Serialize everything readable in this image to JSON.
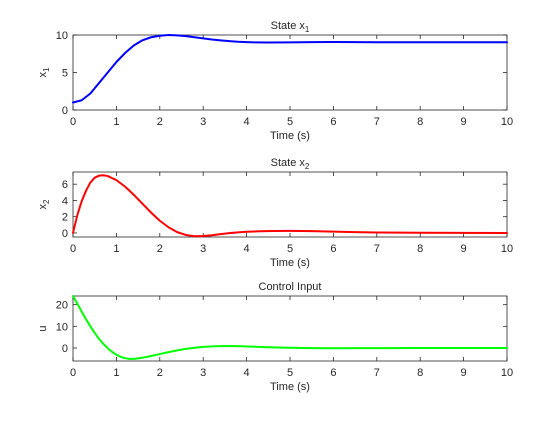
{
  "chart_data": [
    {
      "type": "line",
      "title": "State x",
      "title_subscript": "1",
      "xlabel": "Time (s)",
      "ylabel": "x",
      "ylabel_subscript": "1",
      "xlim": [
        0,
        10
      ],
      "ylim": [
        0,
        10
      ],
      "xticks": [
        0,
        1,
        2,
        3,
        4,
        5,
        6,
        7,
        8,
        9,
        10
      ],
      "yticks": [
        0,
        5,
        10
      ],
      "grid": false,
      "series": [
        {
          "color": "#0000ff",
          "points": [
            [
              0,
              1.0
            ],
            [
              0.2,
              1.3
            ],
            [
              0.4,
              2.2
            ],
            [
              0.6,
              3.6
            ],
            [
              0.8,
              5.0
            ],
            [
              1.0,
              6.4
            ],
            [
              1.2,
              7.6
            ],
            [
              1.4,
              8.6
            ],
            [
              1.6,
              9.3
            ],
            [
              1.8,
              9.7
            ],
            [
              2.0,
              9.9
            ],
            [
              2.2,
              10.0
            ],
            [
              2.4,
              9.95
            ],
            [
              2.6,
              9.85
            ],
            [
              2.8,
              9.7
            ],
            [
              3.0,
              9.55
            ],
            [
              3.2,
              9.4
            ],
            [
              3.4,
              9.28
            ],
            [
              3.6,
              9.18
            ],
            [
              3.8,
              9.1
            ],
            [
              4.0,
              9.05
            ],
            [
              4.2,
              9.02
            ],
            [
              4.5,
              9.0
            ],
            [
              5.0,
              9.02
            ],
            [
              5.5,
              9.05
            ],
            [
              6.0,
              9.06
            ],
            [
              6.5,
              9.05
            ],
            [
              7.0,
              9.04
            ],
            [
              8.0,
              9.03
            ],
            [
              9.0,
              9.03
            ],
            [
              10.0,
              9.03
            ]
          ]
        }
      ]
    },
    {
      "type": "line",
      "title": "State x",
      "title_subscript": "2",
      "xlabel": "Time (s)",
      "ylabel": "x",
      "ylabel_subscript": "2",
      "xlim": [
        0,
        10
      ],
      "ylim": [
        -0.5,
        7.5
      ],
      "xticks": [
        0,
        1,
        2,
        3,
        4,
        5,
        6,
        7,
        8,
        9,
        10
      ],
      "yticks": [
        0,
        2,
        4,
        6
      ],
      "grid": false,
      "series": [
        {
          "color": "#ff0000",
          "points": [
            [
              0,
              0.0
            ],
            [
              0.1,
              2.2
            ],
            [
              0.2,
              3.9
            ],
            [
              0.3,
              5.2
            ],
            [
              0.4,
              6.2
            ],
            [
              0.5,
              6.8
            ],
            [
              0.6,
              7.05
            ],
            [
              0.7,
              7.1
            ],
            [
              0.8,
              7.0
            ],
            [
              1.0,
              6.5
            ],
            [
              1.2,
              5.7
            ],
            [
              1.4,
              4.7
            ],
            [
              1.6,
              3.6
            ],
            [
              1.8,
              2.5
            ],
            [
              2.0,
              1.5
            ],
            [
              2.2,
              0.7
            ],
            [
              2.4,
              0.1
            ],
            [
              2.6,
              -0.25
            ],
            [
              2.8,
              -0.4
            ],
            [
              3.0,
              -0.38
            ],
            [
              3.2,
              -0.28
            ],
            [
              3.4,
              -0.15
            ],
            [
              3.6,
              -0.03
            ],
            [
              3.8,
              0.07
            ],
            [
              4.0,
              0.14
            ],
            [
              4.3,
              0.2
            ],
            [
              4.6,
              0.24
            ],
            [
              5.0,
              0.25
            ],
            [
              5.5,
              0.22
            ],
            [
              6.0,
              0.16
            ],
            [
              6.5,
              0.1
            ],
            [
              7.0,
              0.06
            ],
            [
              8.0,
              0.02
            ],
            [
              9.0,
              0.01
            ],
            [
              10.0,
              0.0
            ]
          ]
        }
      ]
    },
    {
      "type": "line",
      "title": "Control Input",
      "title_subscript": "",
      "xlabel": "Time (s)",
      "ylabel": "u",
      "ylabel_subscript": "",
      "xlim": [
        0,
        10
      ],
      "ylim": [
        -6,
        24
      ],
      "xticks": [
        0,
        1,
        2,
        3,
        4,
        5,
        6,
        7,
        8,
        9,
        10
      ],
      "yticks": [
        0,
        10,
        20
      ],
      "grid": false,
      "series": [
        {
          "color": "#00ff00",
          "points": [
            [
              0,
              24.0
            ],
            [
              0.1,
              20.5
            ],
            [
              0.2,
              16.8
            ],
            [
              0.3,
              13.3
            ],
            [
              0.4,
              10.0
            ],
            [
              0.5,
              7.0
            ],
            [
              0.6,
              4.2
            ],
            [
              0.7,
              1.9
            ],
            [
              0.8,
              -0.1
            ],
            [
              0.9,
              -1.8
            ],
            [
              1.0,
              -3.1
            ],
            [
              1.1,
              -4.1
            ],
            [
              1.2,
              -4.7
            ],
            [
              1.3,
              -5.0
            ],
            [
              1.4,
              -5.0
            ],
            [
              1.5,
              -4.8
            ],
            [
              1.6,
              -4.5
            ],
            [
              1.8,
              -3.7
            ],
            [
              2.0,
              -2.8
            ],
            [
              2.2,
              -1.9
            ],
            [
              2.4,
              -1.1
            ],
            [
              2.6,
              -0.4
            ],
            [
              2.8,
              0.1
            ],
            [
              3.0,
              0.5
            ],
            [
              3.2,
              0.75
            ],
            [
              3.5,
              0.9
            ],
            [
              3.8,
              0.85
            ],
            [
              4.2,
              0.6
            ],
            [
              4.6,
              0.3
            ],
            [
              5.0,
              0.1
            ],
            [
              5.5,
              -0.05
            ],
            [
              6.0,
              -0.1
            ],
            [
              6.5,
              -0.08
            ],
            [
              7.0,
              -0.04
            ],
            [
              8.0,
              0.0
            ],
            [
              9.0,
              0.0
            ],
            [
              10.0,
              0.0
            ]
          ]
        }
      ]
    }
  ]
}
